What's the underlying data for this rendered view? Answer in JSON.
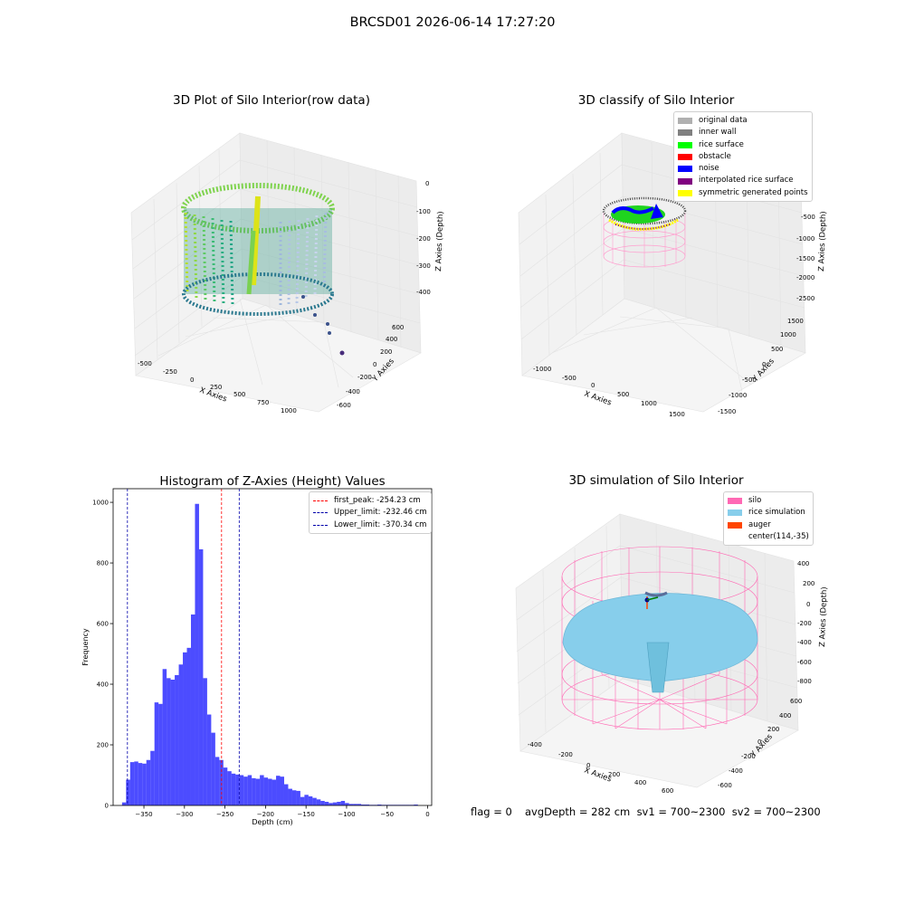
{
  "figure_title": "BRCSD01 2026-06-14 17:27:20",
  "panels": {
    "raw": {
      "title": "3D Plot of Silo Interior(row data)",
      "xlabel": "X Axies",
      "ylabel": "Y Axies",
      "zlabel": "Z Axies (Depth)",
      "xticks": [
        "-500",
        "-250",
        "0",
        "250",
        "500",
        "750",
        "1000"
      ],
      "yticks": [
        "600",
        "400",
        "200",
        "0",
        "-200",
        "-400",
        "-600"
      ],
      "zticks": [
        "0",
        "-100",
        "-200",
        "-300",
        "-400"
      ]
    },
    "classify": {
      "title": "3D classify of Silo Interior",
      "xlabel": "X Axies",
      "ylabel": "Y Axies",
      "zlabel": "Z Axies (Depth)",
      "xticks": [
        "-1000",
        "-500",
        "0",
        "500",
        "1000",
        "1500"
      ],
      "yticks": [
        "1500",
        "1000",
        "500",
        "0",
        "-500",
        "-1000",
        "-1500"
      ],
      "zticks": [
        "-500",
        "-1000",
        "-1500",
        "-2000",
        "-2500"
      ],
      "legend": [
        {
          "label": "original data",
          "color": "#b0b0b0"
        },
        {
          "label": "inner wall",
          "color": "#808080"
        },
        {
          "label": "rice surface",
          "color": "#00ff00"
        },
        {
          "label": "obstacle",
          "color": "#ff0000"
        },
        {
          "label": "noise",
          "color": "#0000ff"
        },
        {
          "label": "interpolated rice surface",
          "color": "#800080"
        },
        {
          "label": "symmetric generated points",
          "color": "#ffff00"
        }
      ]
    },
    "simulation": {
      "title": "3D simulation of Silo Interior",
      "xlabel": "X Axies",
      "ylabel": "Y Axies",
      "zlabel": "Z Axies (Depth)",
      "xticks": [
        "-400",
        "-200",
        "0",
        "200",
        "400",
        "600"
      ],
      "yticks": [
        "600",
        "400",
        "200",
        "0",
        "-200",
        "-400",
        "-600"
      ],
      "zticks": [
        "400",
        "200",
        "0",
        "-200",
        "-400",
        "-600",
        "-800"
      ],
      "legend": [
        {
          "label": "silo",
          "color": "#ff69b4"
        },
        {
          "label": "rice simulation",
          "color": "#87ceeb"
        },
        {
          "label": "auger",
          "color": "#ff4500"
        },
        {
          "label": "center(114,-35)",
          "color": ""
        }
      ]
    }
  },
  "footer": {
    "flag": "flag = 0",
    "avg": "avgDepth = 282 cm  sv1 = 700~2300  sv2 = 700~2300"
  },
  "chart_data": {
    "type": "bar",
    "title": "Histogram of Z-Axies (Height) Values",
    "xlabel": "Depth (cm)",
    "ylabel": "Frequency",
    "xlim": [
      -388,
      5
    ],
    "ylim": [
      0,
      1045
    ],
    "xticks": [
      -350,
      -300,
      -250,
      -200,
      -150,
      -100,
      -50,
      0
    ],
    "yticks": [
      0,
      200,
      400,
      600,
      800,
      1000
    ],
    "bar_color": "#0000ff",
    "bin_edges": [
      -377,
      -372,
      -367,
      -362,
      -357,
      -352,
      -347,
      -342,
      -337,
      -332,
      -327,
      -322,
      -317,
      -312,
      -307,
      -302,
      -297,
      -292,
      -287,
      -282,
      -277,
      -272,
      -267,
      -262,
      -257,
      -252,
      -247,
      -242,
      -237,
      -232,
      -227,
      -222,
      -217,
      -212,
      -207,
      -202,
      -197,
      -192,
      -187,
      -182,
      -177,
      -172,
      -167,
      -162,
      -157,
      -152,
      -147,
      -142,
      -137,
      -132,
      -127,
      -122,
      -117,
      -112,
      -107,
      -102,
      -97,
      -92,
      -87,
      -82,
      -77,
      -72,
      -67,
      -62,
      -57,
      -52,
      -47,
      -42,
      -37,
      -32,
      -27,
      -22,
      -17,
      -12
    ],
    "counts": [
      10,
      85,
      143,
      145,
      140,
      138,
      150,
      180,
      340,
      335,
      450,
      420,
      415,
      430,
      465,
      505,
      520,
      630,
      995,
      845,
      420,
      300,
      240,
      160,
      150,
      125,
      113,
      105,
      102,
      100,
      95,
      100,
      90,
      88,
      100,
      92,
      88,
      85,
      98,
      95,
      70,
      55,
      50,
      48,
      28,
      35,
      30,
      25,
      20,
      15,
      12,
      8,
      10,
      12,
      15,
      8,
      5,
      5,
      5,
      3,
      3,
      2,
      2,
      3,
      2,
      2,
      2,
      2,
      2,
      2,
      2,
      2,
      3
    ],
    "counts_note": "",
    "vlines": [
      {
        "label": "first_peak: -254.23 cm",
        "x": -254.23,
        "color": "#ff0000"
      },
      {
        "label": "Upper_limit: -232.46 cm",
        "x": -232.46,
        "color": "#0000aa"
      },
      {
        "label": "Lower_limit: -370.34 cm",
        "x": -370.34,
        "color": "#0000aa"
      }
    ]
  }
}
